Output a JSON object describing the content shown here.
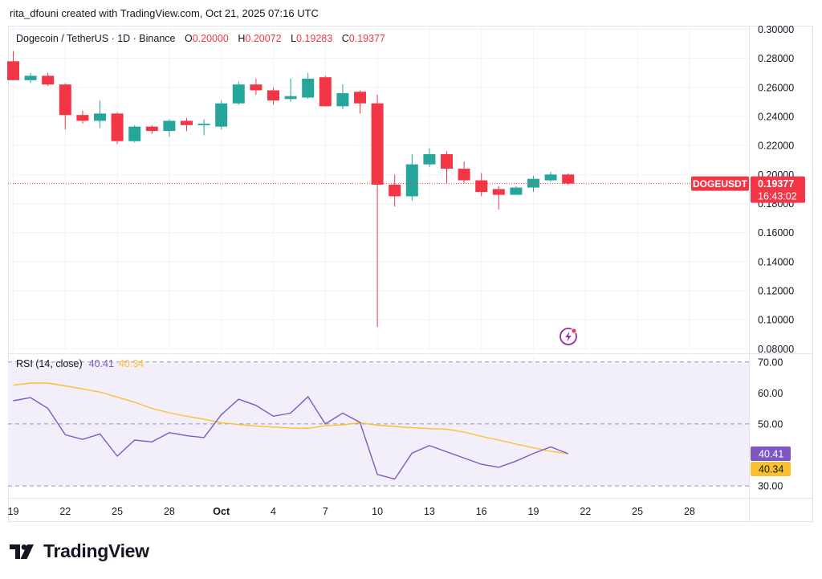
{
  "header": {
    "text": "rita_dfouni created with TradingView.com, Oct 21, 2025 07:16 UTC"
  },
  "symbol_line": {
    "name": "Dogecoin / TetherUS · 1D · Binance",
    "o_label": "O",
    "o_value": "0.20000",
    "h_label": "H",
    "h_value": "0.20072",
    "l_label": "L",
    "l_value": "0.19283",
    "c_label": "C",
    "c_value": "0.19377"
  },
  "price_badge": {
    "symbol": "DOGEUSDT",
    "price": "0.19377",
    "countdown": "16:43:02"
  },
  "rsi_line": {
    "name": "RSI (14, close)",
    "rsi_value": "40.41",
    "ma_value": "40.34"
  },
  "rsi_badges": {
    "rsi": "40.41",
    "ma": "40.34"
  },
  "brand": {
    "name": "TradingView"
  },
  "colors": {
    "up": "#26a69a",
    "down": "#f23645",
    "rsi": "#7e57c2",
    "ma": "#fbc02d",
    "grid": "#f0f3fa",
    "band": "#f3effa",
    "text": "#131722"
  },
  "chart_data": [
    {
      "type": "candlestick",
      "title": "Dogecoin / TetherUS · 1D · Binance",
      "x_ticks": [
        "19",
        "22",
        "25",
        "28",
        "Oct",
        "4",
        "7",
        "10",
        "13",
        "16",
        "19",
        "22",
        "25",
        "28"
      ],
      "y_ticks": [
        "0.30000",
        "0.28000",
        "0.26000",
        "0.24000",
        "0.22000",
        "0.20000",
        "0.18000",
        "0.16000",
        "0.14000",
        "0.12000",
        "0.10000",
        "0.08000"
      ],
      "ylim": [
        0.0785,
        0.3025
      ],
      "x_start": "Sep 19",
      "candles": [
        {
          "x": "Sep 19",
          "o": 0.278,
          "h": 0.285,
          "l": 0.265,
          "c": 0.265
        },
        {
          "x": "Sep 20",
          "o": 0.265,
          "h": 0.27,
          "l": 0.263,
          "c": 0.268
        },
        {
          "x": "Sep 21",
          "o": 0.268,
          "h": 0.27,
          "l": 0.261,
          "c": 0.262
        },
        {
          "x": "Sep 22",
          "o": 0.262,
          "h": 0.263,
          "l": 0.231,
          "c": 0.241
        },
        {
          "x": "Sep 23",
          "o": 0.241,
          "h": 0.244,
          "l": 0.235,
          "c": 0.237
        },
        {
          "x": "Sep 24",
          "o": 0.237,
          "h": 0.251,
          "l": 0.232,
          "c": 0.242
        },
        {
          "x": "Sep 25",
          "o": 0.242,
          "h": 0.243,
          "l": 0.221,
          "c": 0.223
        },
        {
          "x": "Sep 26",
          "o": 0.223,
          "h": 0.234,
          "l": 0.222,
          "c": 0.233
        },
        {
          "x": "Sep 27",
          "o": 0.233,
          "h": 0.234,
          "l": 0.228,
          "c": 0.23
        },
        {
          "x": "Sep 28",
          "o": 0.23,
          "h": 0.238,
          "l": 0.226,
          "c": 0.237
        },
        {
          "x": "Sep 29",
          "o": 0.237,
          "h": 0.239,
          "l": 0.23,
          "c": 0.234
        },
        {
          "x": "Sep 30",
          "o": 0.234,
          "h": 0.238,
          "l": 0.227,
          "c": 0.235
        },
        {
          "x": "Oct 1",
          "o": 0.233,
          "h": 0.251,
          "l": 0.231,
          "c": 0.249
        },
        {
          "x": "Oct 2",
          "o": 0.249,
          "h": 0.264,
          "l": 0.248,
          "c": 0.262
        },
        {
          "x": "Oct 3",
          "o": 0.262,
          "h": 0.266,
          "l": 0.255,
          "c": 0.258
        },
        {
          "x": "Oct 4",
          "o": 0.258,
          "h": 0.26,
          "l": 0.248,
          "c": 0.251
        },
        {
          "x": "Oct 5",
          "o": 0.252,
          "h": 0.266,
          "l": 0.25,
          "c": 0.254
        },
        {
          "x": "Oct 6",
          "o": 0.253,
          "h": 0.27,
          "l": 0.252,
          "c": 0.266
        },
        {
          "x": "Oct 7",
          "o": 0.267,
          "h": 0.268,
          "l": 0.247,
          "c": 0.247
        },
        {
          "x": "Oct 8",
          "o": 0.247,
          "h": 0.262,
          "l": 0.245,
          "c": 0.256
        },
        {
          "x": "Oct 9",
          "o": 0.257,
          "h": 0.258,
          "l": 0.242,
          "c": 0.249
        },
        {
          "x": "Oct 10",
          "o": 0.249,
          "h": 0.255,
          "l": 0.095,
          "c": 0.193
        },
        {
          "x": "Oct 11",
          "o": 0.193,
          "h": 0.2,
          "l": 0.178,
          "c": 0.185
        },
        {
          "x": "Oct 12",
          "o": 0.185,
          "h": 0.214,
          "l": 0.182,
          "c": 0.207
        },
        {
          "x": "Oct 13",
          "o": 0.207,
          "h": 0.218,
          "l": 0.205,
          "c": 0.214
        },
        {
          "x": "Oct 14",
          "o": 0.214,
          "h": 0.216,
          "l": 0.194,
          "c": 0.204
        },
        {
          "x": "Oct 15",
          "o": 0.204,
          "h": 0.209,
          "l": 0.194,
          "c": 0.196
        },
        {
          "x": "Oct 16",
          "o": 0.196,
          "h": 0.201,
          "l": 0.185,
          "c": 0.188
        },
        {
          "x": "Oct 17",
          "o": 0.19,
          "h": 0.192,
          "l": 0.176,
          "c": 0.186
        },
        {
          "x": "Oct 18",
          "o": 0.186,
          "h": 0.192,
          "l": 0.186,
          "c": 0.191
        },
        {
          "x": "Oct 19",
          "o": 0.191,
          "h": 0.199,
          "l": 0.188,
          "c": 0.197
        },
        {
          "x": "Oct 20",
          "o": 0.196,
          "h": 0.202,
          "l": 0.195,
          "c": 0.2
        },
        {
          "x": "Oct 21",
          "o": 0.2,
          "h": 0.2007,
          "l": 0.1928,
          "c": 0.1938
        }
      ],
      "last_price": 0.19377
    },
    {
      "type": "line",
      "title": "RSI (14, close)",
      "y_ticks": [
        "70.00",
        "60.00",
        "50.00",
        "30.00"
      ],
      "ylim": [
        29.5,
        71.5
      ],
      "bands": [
        70,
        50,
        30
      ],
      "x": [
        "Sep 19",
        "Sep 20",
        "Sep 21",
        "Sep 22",
        "Sep 23",
        "Sep 24",
        "Sep 25",
        "Sep 26",
        "Sep 27",
        "Sep 28",
        "Sep 29",
        "Sep 30",
        "Oct 1",
        "Oct 2",
        "Oct 3",
        "Oct 4",
        "Oct 5",
        "Oct 6",
        "Oct 7",
        "Oct 8",
        "Oct 9",
        "Oct 10",
        "Oct 11",
        "Oct 12",
        "Oct 13",
        "Oct 14",
        "Oct 15",
        "Oct 16",
        "Oct 17",
        "Oct 18",
        "Oct 19",
        "Oct 20",
        "Oct 21"
      ],
      "series": [
        {
          "values": [
            57.5,
            58.5,
            55,
            46.5,
            45,
            46.8,
            39.6,
            44.8,
            44.2,
            47.2,
            46.2,
            45.6,
            53,
            58,
            56,
            52.5,
            53.5,
            58.8,
            50,
            53.5,
            50.5,
            33.7,
            32.2,
            40.6,
            43,
            41,
            39,
            37,
            36,
            38,
            40.5,
            42.6,
            40.41
          ]
        },
        {
          "values": [
            62.5,
            63.2,
            63.2,
            62.3,
            61.3,
            60.3,
            58.7,
            57,
            55,
            53.6,
            52.5,
            51.5,
            50.4,
            49.8,
            49.3,
            49,
            48.7,
            48.6,
            49.4,
            49.7,
            50.4,
            49.6,
            49.2,
            48.8,
            48.5,
            48.3,
            47.4,
            46,
            44.8,
            43.5,
            42.3,
            41.2,
            40.34
          ]
        }
      ]
    }
  ]
}
